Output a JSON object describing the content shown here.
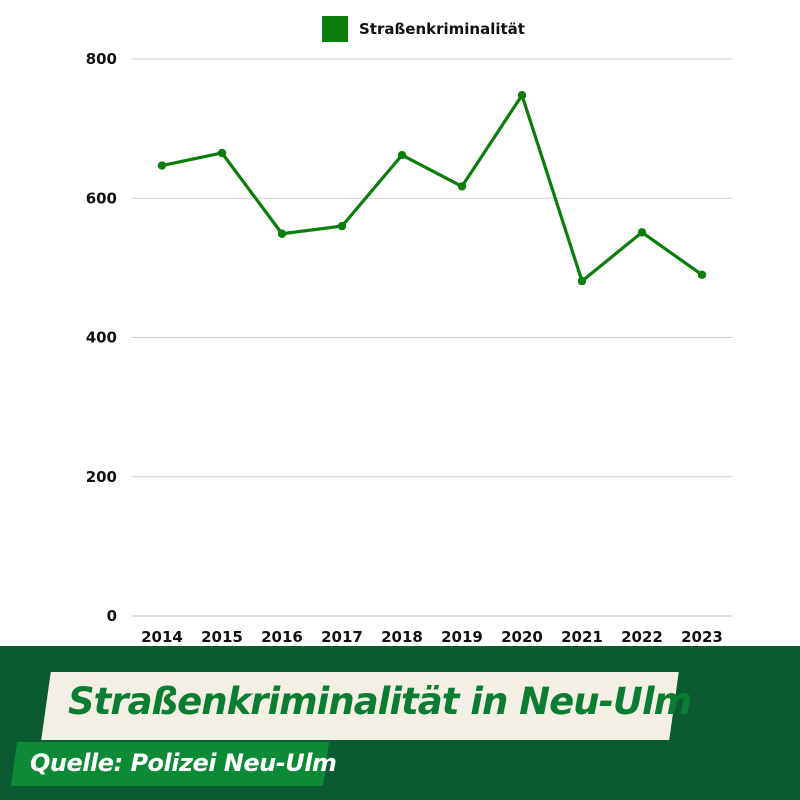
{
  "colors": {
    "series": "#0a7d0a",
    "footer_bg": "#0a5a32",
    "title_text": "#0a7d32",
    "source_box": "#0d8a36",
    "grid": "#d0d0d0"
  },
  "chart_data": {
    "type": "line",
    "x": [
      "2014",
      "2015",
      "2016",
      "2017",
      "2018",
      "2019",
      "2020",
      "2021",
      "2022",
      "2023"
    ],
    "series": [
      {
        "name": "Straßenkriminalität",
        "values": [
          647,
          665,
          549,
          560,
          662,
          617,
          748,
          481,
          551,
          490
        ]
      }
    ],
    "yticks": [
      0,
      200,
      400,
      600,
      800
    ],
    "ylim": [
      0,
      800
    ],
    "grid": true,
    "legend": "top-center"
  },
  "footer": {
    "title": "Straßenkriminalität in Neu-Ulm",
    "source": "Quelle: Polizei Neu-Ulm"
  }
}
